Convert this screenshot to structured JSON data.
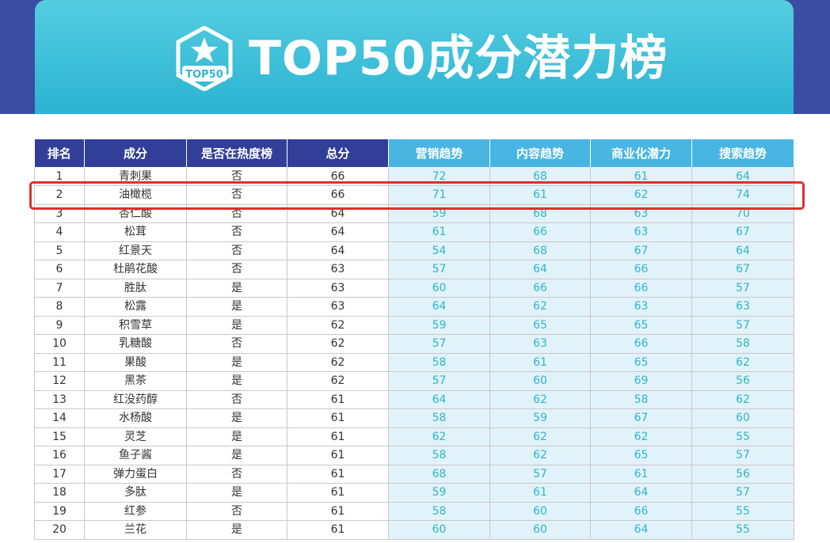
{
  "header": {
    "title": "TOP50成分潜力榜",
    "badge_text": "TOP50",
    "badge_icon": "star-icon"
  },
  "table": {
    "columns": [
      "排名",
      "成分",
      "是否在热度榜",
      "总分",
      "营销趋势",
      "内容趋势",
      "商业化潜力",
      "搜索趋势"
    ],
    "rows": [
      [
        "1",
        "青刺果",
        "否",
        "66",
        "72",
        "68",
        "61",
        "64"
      ],
      [
        "2",
        "油橄榄",
        "否",
        "66",
        "71",
        "61",
        "62",
        "74"
      ],
      [
        "3",
        "杏仁酸",
        "否",
        "64",
        "59",
        "68",
        "63",
        "70"
      ],
      [
        "4",
        "松茸",
        "否",
        "64",
        "61",
        "66",
        "63",
        "67"
      ],
      [
        "5",
        "红景天",
        "否",
        "64",
        "54",
        "68",
        "67",
        "64"
      ],
      [
        "6",
        "杜鹃花酸",
        "否",
        "63",
        "57",
        "64",
        "66",
        "67"
      ],
      [
        "7",
        "胜肽",
        "是",
        "63",
        "60",
        "66",
        "66",
        "57"
      ],
      [
        "8",
        "松露",
        "是",
        "63",
        "64",
        "62",
        "63",
        "63"
      ],
      [
        "9",
        "积雪草",
        "是",
        "62",
        "59",
        "65",
        "65",
        "57"
      ],
      [
        "10",
        "乳糖酸",
        "否",
        "62",
        "57",
        "63",
        "66",
        "58"
      ],
      [
        "11",
        "果酸",
        "是",
        "62",
        "58",
        "61",
        "65",
        "62"
      ],
      [
        "12",
        "黑茶",
        "是",
        "62",
        "57",
        "60",
        "69",
        "56"
      ],
      [
        "13",
        "红没药醇",
        "否",
        "61",
        "64",
        "62",
        "58",
        "62"
      ],
      [
        "14",
        "水杨酸",
        "是",
        "61",
        "58",
        "59",
        "67",
        "60"
      ],
      [
        "15",
        "灵芝",
        "是",
        "61",
        "62",
        "62",
        "62",
        "55"
      ],
      [
        "16",
        "鱼子酱",
        "是",
        "61",
        "58",
        "62",
        "65",
        "57"
      ],
      [
        "17",
        "弹力蛋白",
        "否",
        "61",
        "68",
        "57",
        "61",
        "56"
      ],
      [
        "18",
        "多肽",
        "是",
        "61",
        "59",
        "61",
        "64",
        "57"
      ],
      [
        "19",
        "红参",
        "否",
        "61",
        "58",
        "60",
        "66",
        "55"
      ],
      [
        "20",
        "兰花",
        "是",
        "61",
        "60",
        "60",
        "64",
        "55"
      ]
    ],
    "highlighted_row": 2
  },
  "colors": {
    "header_band": "#3b4da3",
    "banner": "#2fb6d4",
    "dark_header": "#323f99",
    "light_header": "#48b5e3",
    "metric_text": "#2cb7c9",
    "metric_bg": "#e2f2fa",
    "highlight": "#d9322b"
  }
}
